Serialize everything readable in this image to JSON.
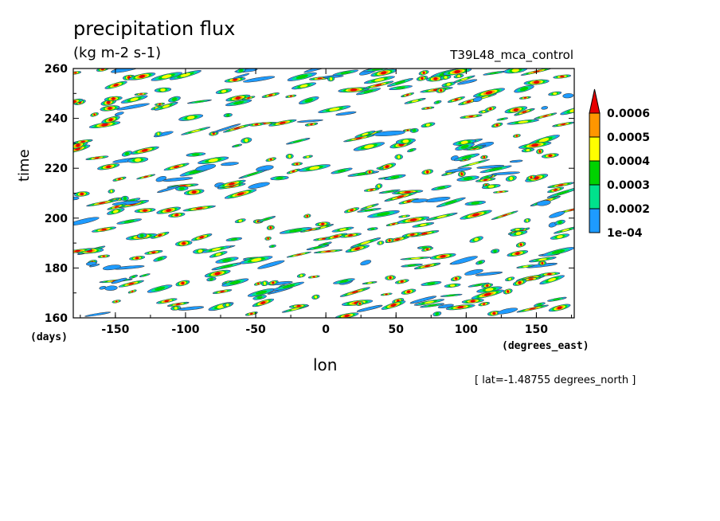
{
  "chart_data": {
    "type": "heatmap",
    "title": "precipitation flux",
    "units": "(kg m-2 s-1)",
    "experiment": "T39L48_mca_control",
    "xlabel": "lon",
    "x_units": "(degrees_east)",
    "ylabel": "time",
    "y_units": "(days)",
    "slice": "[ lat=-1.48755 degrees_north ]",
    "xlim": [
      -180,
      177
    ],
    "ylim": [
      160,
      260
    ],
    "x_ticks": [
      -150,
      -100,
      -50,
      0,
      50,
      100,
      150
    ],
    "x_tick_labels": [
      "-150",
      "-100",
      "-50",
      "0",
      "50",
      "100",
      "150"
    ],
    "y_ticks": [
      160,
      180,
      200,
      220,
      240,
      260
    ],
    "y_tick_labels": [
      "160",
      "180",
      "200",
      "220",
      "240",
      "260"
    ],
    "color_levels": [
      0.0001,
      0.0002,
      0.0003,
      0.0004,
      0.0005,
      0.0006
    ],
    "colorbar_labels": [
      "1e-04",
      "0.0002",
      "0.0003",
      "0.0004",
      "0.0005",
      "0.0006"
    ],
    "colors": [
      "#1e9bff",
      "#00e28c",
      "#00d200",
      "#ffff00",
      "#ff9600",
      "#e60000"
    ],
    "background": "#ffffff",
    "contour_color": "#333333",
    "pattern": "scattered eastward-tilted precipitation streaks across all longitudes"
  }
}
